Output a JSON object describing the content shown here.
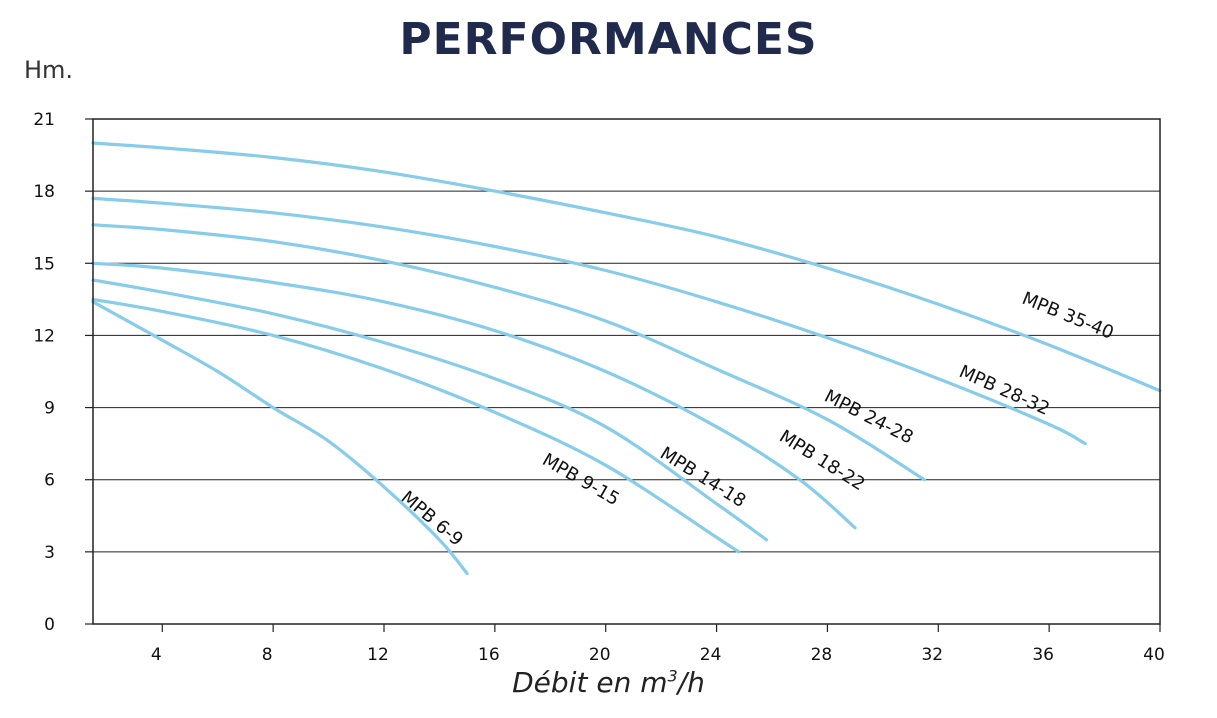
{
  "chart_data": {
    "type": "line",
    "title": "PERFORMANCES",
    "ylabel": "Hm.",
    "xlabel_prefix": "Débit en m",
    "xlabel_sup": "3",
    "xlabel_suffix": "/h",
    "xlim": [
      1.5,
      40
    ],
    "ylim": [
      0,
      21
    ],
    "xticks": [
      4,
      8,
      12,
      16,
      20,
      24,
      28,
      32,
      36,
      40
    ],
    "yticks": [
      0,
      3,
      6,
      9,
      12,
      15,
      18,
      21
    ],
    "grid": "horizontal",
    "line_color": "#87cce8",
    "series": [
      {
        "name": "MPB 6-9",
        "x": [
          1.5,
          4,
          6,
          8,
          10,
          12,
          14,
          15
        ],
        "y": [
          13.4,
          11.8,
          10.5,
          9.0,
          7.6,
          5.7,
          3.5,
          2.1
        ]
      },
      {
        "name": "MPB 9-15",
        "x": [
          1.5,
          4,
          8,
          12,
          16,
          20,
          24,
          24.8
        ],
        "y": [
          13.5,
          13.0,
          12.0,
          10.6,
          8.8,
          6.6,
          3.6,
          3.0
        ]
      },
      {
        "name": "MPB 14-18",
        "x": [
          1.5,
          4,
          8,
          12,
          16,
          20,
          24,
          25.8
        ],
        "y": [
          14.3,
          13.8,
          12.9,
          11.7,
          10.2,
          8.2,
          5.0,
          3.5
        ]
      },
      {
        "name": "MPB 18-22",
        "x": [
          1.5,
          4,
          8,
          12,
          16,
          20,
          24,
          27,
          29
        ],
        "y": [
          15.0,
          14.8,
          14.2,
          13.4,
          12.2,
          10.5,
          8.2,
          6.0,
          4.0
        ]
      },
      {
        "name": "MPB 24-28",
        "x": [
          1.5,
          4,
          8,
          12,
          16,
          20,
          24,
          28,
          31.5
        ],
        "y": [
          16.6,
          16.4,
          15.9,
          15.1,
          14.0,
          12.6,
          10.6,
          8.5,
          6.0
        ]
      },
      {
        "name": "MPB 28-32",
        "x": [
          1.5,
          4,
          8,
          12,
          16,
          20,
          24,
          28,
          32,
          36,
          37.3
        ],
        "y": [
          17.7,
          17.5,
          17.1,
          16.5,
          15.7,
          14.7,
          13.4,
          11.9,
          10.2,
          8.3,
          7.5
        ]
      },
      {
        "name": "MPB 35-40",
        "x": [
          1.5,
          4,
          8,
          12,
          16,
          20,
          24,
          28,
          32,
          36,
          40
        ],
        "y": [
          20.0,
          19.8,
          19.4,
          18.8,
          18.0,
          17.1,
          16.1,
          14.8,
          13.3,
          11.6,
          9.7
        ]
      }
    ]
  }
}
